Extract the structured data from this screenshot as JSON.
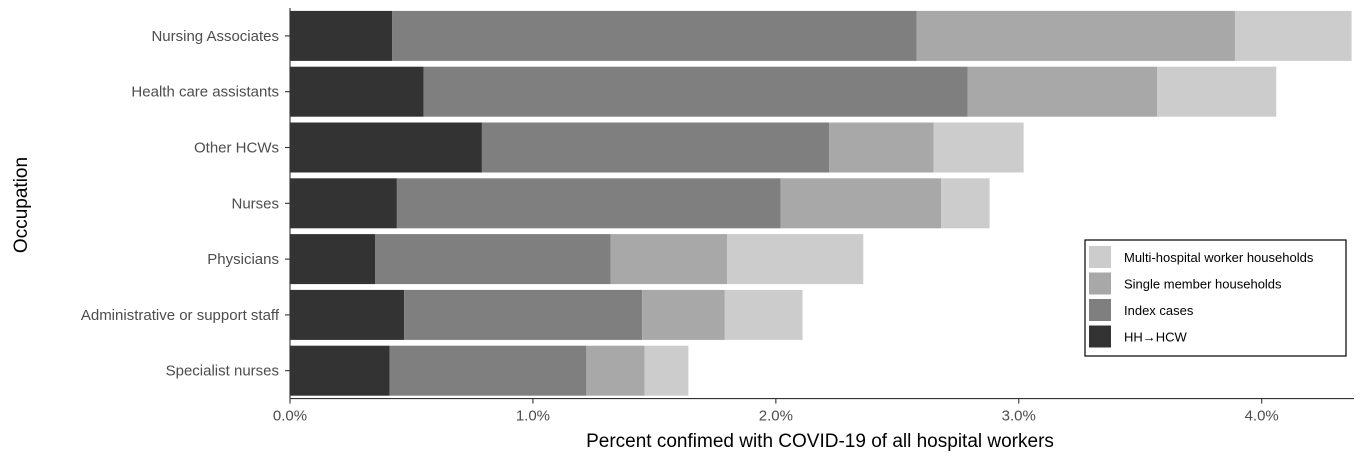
{
  "chart_data": {
    "type": "bar",
    "orientation": "horizontal",
    "stacked": true,
    "categories": [
      "Nursing Associates",
      "Health care assistants",
      "Other HCWs",
      "Nurses",
      "Physicians",
      "Administrative or support staff",
      "Specialist nurses"
    ],
    "series": [
      {
        "name": "HH→HCW",
        "color": "#333333",
        "values": [
          0.42,
          0.55,
          0.79,
          0.44,
          0.35,
          0.47,
          0.41
        ]
      },
      {
        "name": "Index cases",
        "color": "#7f7f7f",
        "values": [
          2.16,
          2.24,
          1.43,
          1.58,
          0.97,
          0.98,
          0.81
        ]
      },
      {
        "name": "Single member households",
        "color": "#a8a8a8",
        "values": [
          1.31,
          0.78,
          0.43,
          0.66,
          0.48,
          0.34,
          0.24
        ]
      },
      {
        "name": "Multi-hospital worker households",
        "color": "#cccccc",
        "values": [
          0.48,
          0.49,
          0.37,
          0.2,
          0.56,
          0.32,
          0.18
        ]
      }
    ],
    "legend_order": [
      "Multi-hospital worker households",
      "Single member households",
      "Index cases",
      "HH→HCW"
    ],
    "xlim": [
      0,
      4.38
    ],
    "xticks": [
      0,
      1,
      2,
      3,
      4
    ],
    "xtick_labels": [
      "0.0%",
      "1.0%",
      "2.0%",
      "3.0%",
      "4.0%"
    ],
    "xlabel": "Percent confimed with COVID-19 of all hospital workers",
    "ylabel": "Occupation",
    "grid": false,
    "legend_position": "right"
  }
}
